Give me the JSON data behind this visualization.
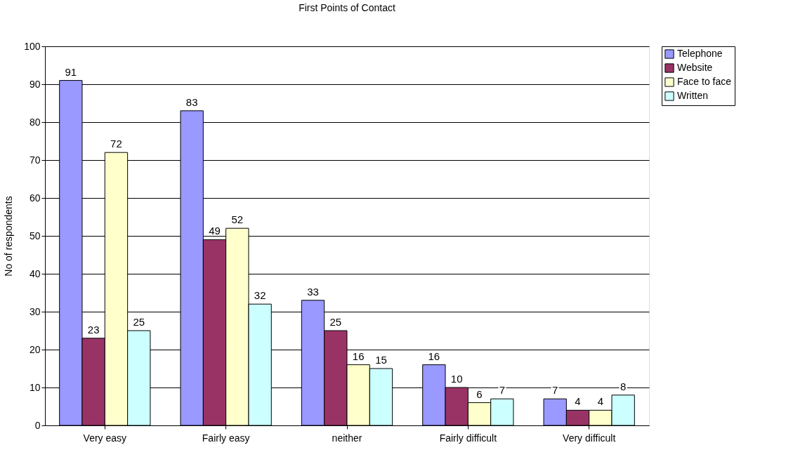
{
  "chart_data": {
    "type": "bar",
    "title": "First Points of Contact",
    "ylabel": "No of respondents",
    "categories": [
      "Very easy",
      "Fairly easy",
      "neither",
      "Fairly difficult",
      "Very difficult"
    ],
    "series": [
      {
        "name": "Telephone",
        "color": "#9999ff",
        "values": [
          91,
          83,
          33,
          16,
          7
        ]
      },
      {
        "name": "Website",
        "color": "#993366",
        "values": [
          23,
          49,
          25,
          10,
          4
        ]
      },
      {
        "name": "Face to face",
        "color": "#ffffcc",
        "values": [
          72,
          52,
          16,
          6,
          4
        ]
      },
      {
        "name": "Written",
        "color": "#ccffff",
        "values": [
          25,
          32,
          15,
          7,
          8
        ]
      }
    ],
    "ylim": [
      0,
      100
    ],
    "yticks": [
      0,
      10,
      20,
      30,
      40,
      50,
      60,
      70,
      80,
      90,
      100
    ],
    "grid": "y",
    "legend": "right",
    "data_labels": true
  }
}
